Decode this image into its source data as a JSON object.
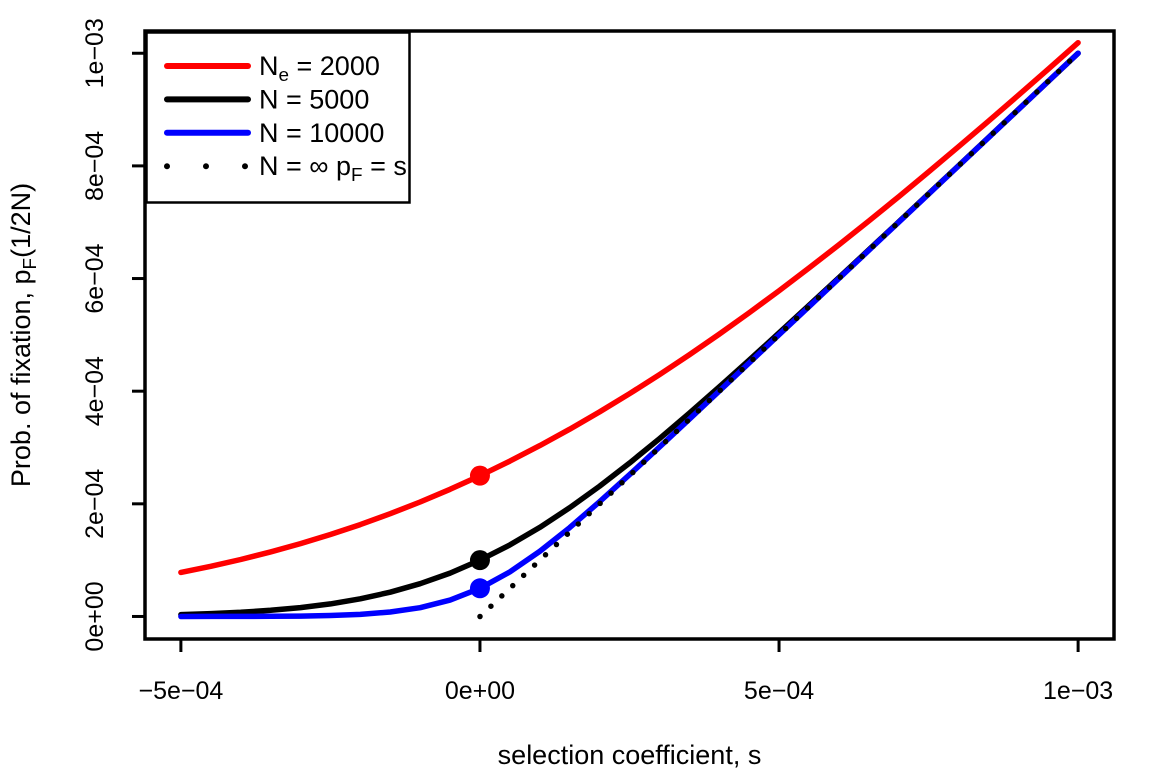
{
  "figure": {
    "background": "#ffffff",
    "edge_left_color": "#a6a6a6",
    "edge_bottom_color": "#e3ecf3",
    "axis_color": "#000000"
  },
  "chart_data": {
    "type": "line",
    "title": "",
    "xlabel": "selection coefficient, s",
    "ylabel": "Prob. of fixation, pF(1/2N)",
    "ylabel_parts": [
      {
        "t": "Prob. of fixation, p"
      },
      {
        "t": "F",
        "sub": true
      },
      {
        "t": "(1/2N)"
      }
    ],
    "xlim": [
      -0.00056,
      0.00106
    ],
    "ylim": [
      -4e-05,
      0.0010395
    ],
    "grid": false,
    "legend_position": "top-left",
    "x_ticks": [
      {
        "value": -0.0005,
        "label": "−5e−04"
      },
      {
        "value": 0,
        "label": "0e+00"
      },
      {
        "value": 0.0005,
        "label": "5e−04"
      },
      {
        "value": 0.001,
        "label": "1e−03"
      }
    ],
    "y_ticks": [
      {
        "value": 0,
        "label": "0e+00"
      },
      {
        "value": 0.0002,
        "label": "2e−04"
      },
      {
        "value": 0.0004,
        "label": "4e−04"
      },
      {
        "value": 0.0006,
        "label": "6e−04"
      },
      {
        "value": 0.0008,
        "label": "8e−04"
      },
      {
        "value": 0.001,
        "label": "1e−03"
      }
    ],
    "x": [
      -0.0005,
      -0.00045,
      -0.0004,
      -0.00035,
      -0.0003,
      -0.00025,
      -0.0002,
      -0.00015,
      -0.0001,
      -5e-05,
      0,
      5e-05,
      0.0001,
      0.00015,
      0.0002,
      0.00025,
      0.0003,
      0.00035,
      0.0004,
      0.00045,
      0.0005,
      0.00055,
      0.0006,
      0.00065,
      0.0007,
      0.00075,
      0.0008,
      0.00085,
      0.0009,
      0.00095,
      0.001
    ],
    "series": [
      {
        "name": "Ne = 2000",
        "label_parts": [
          {
            "t": "N"
          },
          {
            "t": "e",
            "sub": true
          },
          {
            "t": " = 2000"
          }
        ],
        "color": "#ff0000",
        "style": "solid",
        "point_at": {
          "x": 0,
          "y": 0.00025
        },
        "y": [
          7.826e-05,
          8.9115e-05,
          0.00010119,
          0.00011456,
          0.0001293,
          0.000145494,
          0.00016319,
          0.000182455,
          0.00020333,
          0.000225833,
          0.00025,
          0.000275833,
          0.00030332,
          0.000332456,
          0.0003632,
          0.000395494,
          0.0004293,
          0.00046456,
          0.00050119,
          0.000539115,
          0.00057826,
          0.000618536,
          0.00065986,
          0.000702152,
          0.00074532,
          0.000789297,
          0.00083399,
          0.000879345,
          0.00092528,
          0.000971757,
          0.00101866
        ]
      },
      {
        "name": "N = 5000",
        "label_parts": [
          {
            "t": "N = 5000"
          }
        ],
        "color": "#000000",
        "style": "solid",
        "point_at": {
          "x": 0,
          "y": 0.0001
        },
        "y": [
          3.392e-06,
          5.055e-06,
          7.463e-06,
          1.08981e-05,
          1.5718e-05,
          2.23563e-05,
          3.1303e-05,
          4.30825e-05,
          5.8198e-05,
          7.70748e-05,
          0.0001,
          0.000127075,
          0.000158198,
          0.000193083,
          0.000231303,
          0.000272356,
          0.000315719,
          0.000360898,
          0.000407465,
          0.000455055,
          0.000503392,
          0.000552257,
          0.000601489,
          0.000650978,
          0.000700639,
          0.000750415,
          0.000800269,
          0.000850173,
          0.000900111,
          0.000950071,
          0.001000045
        ]
      },
      {
        "name": "N = 10000",
        "label_parts": [
          {
            "t": "N = 10000"
          }
        ],
        "color": "#0000ff",
        "style": "solid",
        "point_at": {
          "x": 0,
          "y": 5e-05
        },
        "y": [
          2.3e-08,
          5.6e-08,
          1.34e-07,
          3.19e-07,
          7.46e-07,
          1.696e-06,
          3.7315e-06,
          7.8593e-06,
          1.5652e-05,
          2.9099e-05,
          5e-05,
          7.9099e-05,
          0.000115652,
          0.0001578595,
          0.000203732,
          0.000251696,
          0.000300745,
          0.000350319,
          0.000400134,
          0.000450056,
          0.000500023,
          0.000550009,
          0.000600004,
          0.000650001,
          0.0007,
          0.00075,
          0.0008,
          0.00085,
          0.0009,
          0.00095,
          0.001
        ]
      },
      {
        "name": "N = ∞ pF = s",
        "label_parts": [
          {
            "t": "N = ∞ p"
          },
          {
            "t": "F",
            "sub": true
          },
          {
            "t": " = s"
          }
        ],
        "color": "#000000",
        "style": "dotted",
        "x": [
          0,
          0.001
        ],
        "y": [
          0,
          0.001
        ]
      }
    ]
  }
}
